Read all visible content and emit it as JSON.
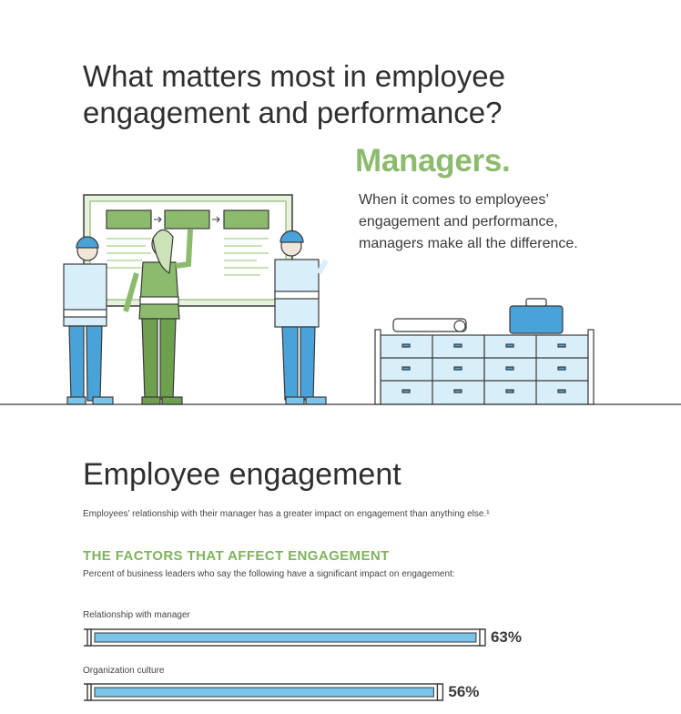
{
  "header": {
    "headline_line1": "What matters most in employee",
    "headline_line2": "engagement and performance?",
    "managers": "Managers.",
    "lead_line1": "When it comes to employees’",
    "lead_line2": "engagement and performance,",
    "lead_line3": "managers make all the difference."
  },
  "section": {
    "title": "Employee engagement",
    "intro": "Employees’ relationship with their manager has a greater impact on engagement than anything else.¹"
  },
  "chart_data": {
    "type": "bar",
    "orientation": "horizontal",
    "title": "THE FACTORS THAT AFFECT ENGAGEMENT",
    "subtitle": "Percent of business leaders who say the following have a significant impact on engagement:",
    "categories": [
      "Relationship with manager",
      "Organization culture"
    ],
    "values": [
      63,
      56
    ],
    "value_labels": [
      "63%",
      "56%"
    ],
    "unit": "%",
    "xlim": [
      0,
      100
    ],
    "bar_color": "#7cc5ea",
    "grid": false
  },
  "colors": {
    "headline": "#2f2f2f",
    "accent_green": "#8dbb6d",
    "bar_fill": "#7cc5ea",
    "bar_outline": "#3a3a3a"
  }
}
